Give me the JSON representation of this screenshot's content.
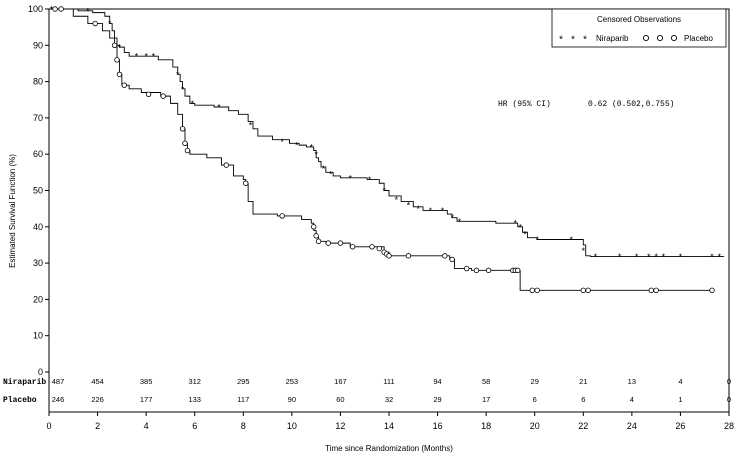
{
  "chart_data": {
    "type": "line",
    "title": "",
    "xlabel": "Time since Randomization (Months)",
    "ylabel": "Estimated Survival Function (%)",
    "xlim": [
      0,
      28
    ],
    "ylim": [
      0,
      100
    ],
    "x_ticks": [
      0,
      2,
      4,
      6,
      8,
      10,
      12,
      14,
      16,
      18,
      20,
      22,
      24,
      26,
      28
    ],
    "y_ticks": [
      0,
      10,
      20,
      30,
      40,
      50,
      60,
      70,
      80,
      90,
      100
    ],
    "grid": false,
    "legend": {
      "title": "Censored Observations",
      "placement": "top-right",
      "entries": [
        {
          "label": "Niraparib",
          "marker": "asterisk"
        },
        {
          "label": "Placebo",
          "marker": "circle"
        }
      ]
    },
    "annotation": {
      "label": "HR (95% CI)",
      "value": "0.62 (0.502,0.755)"
    },
    "series": [
      {
        "name": "Niraparib",
        "marker": "asterisk",
        "color": "#000000",
        "steps": [
          [
            0,
            100
          ],
          [
            0.6,
            100
          ],
          [
            1.2,
            99.5
          ],
          [
            1.8,
            99
          ],
          [
            2.3,
            98
          ],
          [
            2.5,
            96
          ],
          [
            2.6,
            94
          ],
          [
            2.7,
            92
          ],
          [
            2.8,
            90
          ],
          [
            2.9,
            89.5
          ],
          [
            3.1,
            88
          ],
          [
            3.3,
            87
          ],
          [
            4.5,
            86
          ],
          [
            5.1,
            84
          ],
          [
            5.3,
            82
          ],
          [
            5.4,
            80
          ],
          [
            5.5,
            78
          ],
          [
            5.6,
            76
          ],
          [
            5.8,
            74
          ],
          [
            6.0,
            73.5
          ],
          [
            6.8,
            73
          ],
          [
            7.4,
            72
          ],
          [
            7.8,
            71
          ],
          [
            8.2,
            69
          ],
          [
            8.4,
            67
          ],
          [
            8.6,
            65
          ],
          [
            9.2,
            64
          ],
          [
            9.9,
            63
          ],
          [
            10.3,
            62.5
          ],
          [
            10.6,
            62
          ],
          [
            10.9,
            61
          ],
          [
            11.0,
            59
          ],
          [
            11.1,
            58
          ],
          [
            11.2,
            56.5
          ],
          [
            11.4,
            55
          ],
          [
            11.7,
            54
          ],
          [
            12.0,
            53.5
          ],
          [
            13.1,
            53
          ],
          [
            13.6,
            52
          ],
          [
            13.8,
            50
          ],
          [
            14.0,
            48.5
          ],
          [
            14.5,
            47
          ],
          [
            15.0,
            45.5
          ],
          [
            15.4,
            44.5
          ],
          [
            16.4,
            43.5
          ],
          [
            16.6,
            42.5
          ],
          [
            16.8,
            41.5
          ],
          [
            18.4,
            41
          ],
          [
            19.3,
            40
          ],
          [
            19.5,
            38.5
          ],
          [
            19.7,
            37
          ],
          [
            20.1,
            36.5
          ],
          [
            22.0,
            35
          ],
          [
            22.1,
            32
          ],
          [
            22.3,
            31.8
          ],
          [
            27.8,
            31.8
          ]
        ],
        "censored": [
          [
            0.1,
            100
          ],
          [
            1.6,
            99.5
          ],
          [
            2.5,
            96
          ],
          [
            2.9,
            89.5
          ],
          [
            3.6,
            87
          ],
          [
            4.0,
            87
          ],
          [
            4.3,
            87
          ],
          [
            5.3,
            82
          ],
          [
            5.5,
            78
          ],
          [
            5.9,
            74
          ],
          [
            7.0,
            73
          ],
          [
            8.3,
            68
          ],
          [
            9.6,
            63.5
          ],
          [
            10.2,
            62.5
          ],
          [
            10.8,
            62
          ],
          [
            11.0,
            60
          ],
          [
            11.3,
            56
          ],
          [
            11.6,
            54.5
          ],
          [
            12.4,
            53.5
          ],
          [
            13.2,
            53
          ],
          [
            13.8,
            50
          ],
          [
            14.3,
            47.5
          ],
          [
            14.8,
            46
          ],
          [
            15.2,
            45
          ],
          [
            15.7,
            44.5
          ],
          [
            16.2,
            44.5
          ],
          [
            16.6,
            42.5
          ],
          [
            16.9,
            41.5
          ],
          [
            19.2,
            41
          ],
          [
            19.4,
            40
          ],
          [
            19.6,
            38
          ],
          [
            20.1,
            36.5
          ],
          [
            21.5,
            36.5
          ],
          [
            22.0,
            33.5
          ],
          [
            22.5,
            31.8
          ],
          [
            23.5,
            31.8
          ],
          [
            24.2,
            31.8
          ],
          [
            24.7,
            31.8
          ],
          [
            25.0,
            31.8
          ],
          [
            25.3,
            31.8
          ],
          [
            26.0,
            31.8
          ],
          [
            27.3,
            31.8
          ],
          [
            27.6,
            31.8
          ]
        ]
      },
      {
        "name": "Placebo",
        "marker": "circle",
        "color": "#000000",
        "steps": [
          [
            0,
            100
          ],
          [
            0.4,
            100
          ],
          [
            1.0,
            98
          ],
          [
            1.6,
            96
          ],
          [
            2.2,
            94
          ],
          [
            2.5,
            92
          ],
          [
            2.7,
            90
          ],
          [
            2.8,
            86
          ],
          [
            2.9,
            82
          ],
          [
            3.0,
            79
          ],
          [
            3.3,
            78
          ],
          [
            3.8,
            77
          ],
          [
            4.6,
            76
          ],
          [
            5.0,
            74
          ],
          [
            5.3,
            71
          ],
          [
            5.5,
            67
          ],
          [
            5.6,
            63
          ],
          [
            5.7,
            61
          ],
          [
            5.8,
            60
          ],
          [
            6.5,
            59
          ],
          [
            7.1,
            57
          ],
          [
            7.6,
            54
          ],
          [
            8.0,
            53
          ],
          [
            8.1,
            52
          ],
          [
            8.2,
            47
          ],
          [
            8.4,
            43.5
          ],
          [
            9.4,
            43
          ],
          [
            10.4,
            42
          ],
          [
            10.8,
            41
          ],
          [
            10.9,
            39
          ],
          [
            11.0,
            37
          ],
          [
            11.1,
            36
          ],
          [
            11.4,
            35.5
          ],
          [
            12.4,
            34.5
          ],
          [
            13.8,
            33
          ],
          [
            14.0,
            32
          ],
          [
            16.5,
            31
          ],
          [
            16.7,
            28.5
          ],
          [
            17.4,
            28
          ],
          [
            19.3,
            28
          ],
          [
            19.4,
            22.5
          ],
          [
            27.4,
            22.5
          ]
        ],
        "censored": [
          [
            0.25,
            100
          ],
          [
            0.5,
            100
          ],
          [
            1.9,
            96
          ],
          [
            2.7,
            90
          ],
          [
            2.8,
            86
          ],
          [
            2.9,
            82
          ],
          [
            3.1,
            79
          ],
          [
            4.1,
            76.5
          ],
          [
            4.7,
            76
          ],
          [
            5.5,
            67
          ],
          [
            5.6,
            63
          ],
          [
            5.7,
            61
          ],
          [
            7.3,
            57
          ],
          [
            8.1,
            52
          ],
          [
            9.6,
            43
          ],
          [
            10.9,
            40
          ],
          [
            11.0,
            37.5
          ],
          [
            11.1,
            36
          ],
          [
            11.5,
            35.5
          ],
          [
            12.0,
            35.5
          ],
          [
            12.5,
            34.5
          ],
          [
            13.3,
            34.5
          ],
          [
            13.6,
            34
          ],
          [
            13.8,
            33
          ],
          [
            13.9,
            32.5
          ],
          [
            14.0,
            32
          ],
          [
            14.8,
            32
          ],
          [
            16.3,
            32
          ],
          [
            16.6,
            31
          ],
          [
            17.2,
            28.5
          ],
          [
            17.6,
            28
          ],
          [
            18.1,
            28
          ],
          [
            19.1,
            28
          ],
          [
            19.2,
            28
          ],
          [
            19.3,
            28
          ],
          [
            19.9,
            22.5
          ],
          [
            20.1,
            22.5
          ],
          [
            22.0,
            22.5
          ],
          [
            22.2,
            22.5
          ],
          [
            24.8,
            22.5
          ],
          [
            25.0,
            22.5
          ],
          [
            27.3,
            22.5
          ]
        ]
      }
    ],
    "at_risk": {
      "times": [
        0,
        2,
        4,
        6,
        8,
        10,
        12,
        14,
        16,
        18,
        20,
        22,
        24,
        26,
        28
      ],
      "rows": [
        {
          "label": "Niraparib",
          "values": [
            "487",
            "454",
            "385",
            "312",
            "295",
            "253",
            "167",
            "111",
            "94",
            "58",
            "29",
            "21",
            "13",
            "4",
            "0"
          ]
        },
        {
          "label": "Placebo",
          "values": [
            "246",
            "226",
            "177",
            "133",
            "117",
            "90",
            "60",
            "32",
            "29",
            "17",
            "6",
            "6",
            "4",
            "1",
            "0"
          ]
        }
      ]
    }
  }
}
